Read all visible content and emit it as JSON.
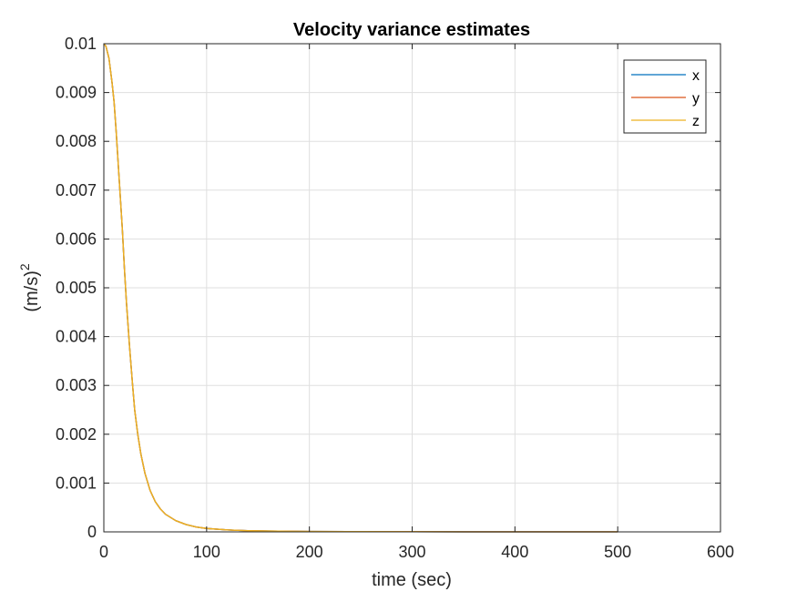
{
  "chart_data": {
    "type": "line",
    "title": "Velocity variance estimates",
    "xlabel": "time (sec)",
    "ylabel_base": "(m/s)",
    "ylabel_sup": "2",
    "xlim": [
      0,
      600
    ],
    "ylim": [
      0,
      0.01
    ],
    "xticks": [
      0,
      100,
      200,
      300,
      400,
      500,
      600
    ],
    "yticks": [
      0,
      0.001,
      0.002,
      0.003,
      0.004,
      0.005,
      0.006,
      0.007,
      0.008,
      0.009,
      0.01
    ],
    "xtick_labels": [
      "0",
      "100",
      "200",
      "300",
      "400",
      "500",
      "600"
    ],
    "ytick_labels": [
      "0",
      "0.001",
      "0.002",
      "0.003",
      "0.004",
      "0.005",
      "0.006",
      "0.007",
      "0.008",
      "0.009",
      "0.01"
    ],
    "grid": true,
    "legend_position": "top-right",
    "x": [
      0,
      2,
      5,
      8,
      10,
      12,
      15,
      18,
      20,
      22,
      25,
      28,
      30,
      33,
      36,
      40,
      45,
      50,
      55,
      60,
      70,
      80,
      90,
      100,
      120,
      140,
      160,
      180,
      200,
      250,
      300,
      350,
      400,
      450,
      500
    ],
    "series": [
      {
        "name": "x",
        "color": "#0072BD",
        "values": [
          0.01,
          0.00995,
          0.0097,
          0.0092,
          0.0088,
          0.0082,
          0.0072,
          0.0062,
          0.0054,
          0.0047,
          0.0038,
          0.003,
          0.0025,
          0.002,
          0.0016,
          0.0012,
          0.00085,
          0.00062,
          0.00047,
          0.00036,
          0.00023,
          0.00015,
          0.0001,
          7e-05,
          4e-05,
          2.5e-05,
          1.7e-05,
          1.2e-05,
          9e-06,
          5e-06,
          3e-06,
          2e-06,
          1.5e-06,
          1.1e-06,
          9e-07
        ]
      },
      {
        "name": "y",
        "color": "#D95319",
        "values": [
          0.01,
          0.00995,
          0.0097,
          0.0092,
          0.0088,
          0.0082,
          0.0072,
          0.0062,
          0.0054,
          0.0047,
          0.0038,
          0.003,
          0.0025,
          0.002,
          0.0016,
          0.0012,
          0.00085,
          0.00062,
          0.00047,
          0.00036,
          0.00023,
          0.00015,
          0.0001,
          7e-05,
          4e-05,
          2.5e-05,
          1.7e-05,
          1.2e-05,
          9e-06,
          5e-06,
          3e-06,
          2e-06,
          1.5e-06,
          1.1e-06,
          9e-07
        ]
      },
      {
        "name": "z",
        "color": "#EDB120",
        "values": [
          0.01,
          0.00995,
          0.0097,
          0.0092,
          0.0088,
          0.0082,
          0.0072,
          0.0062,
          0.0054,
          0.0047,
          0.0038,
          0.003,
          0.0025,
          0.002,
          0.0016,
          0.0012,
          0.00085,
          0.00062,
          0.00047,
          0.00036,
          0.00023,
          0.00015,
          0.0001,
          7e-05,
          4e-05,
          2.5e-05,
          1.7e-05,
          1.2e-05,
          9e-06,
          5e-06,
          3e-06,
          2e-06,
          1.5e-06,
          1.1e-06,
          9e-07
        ]
      }
    ]
  }
}
